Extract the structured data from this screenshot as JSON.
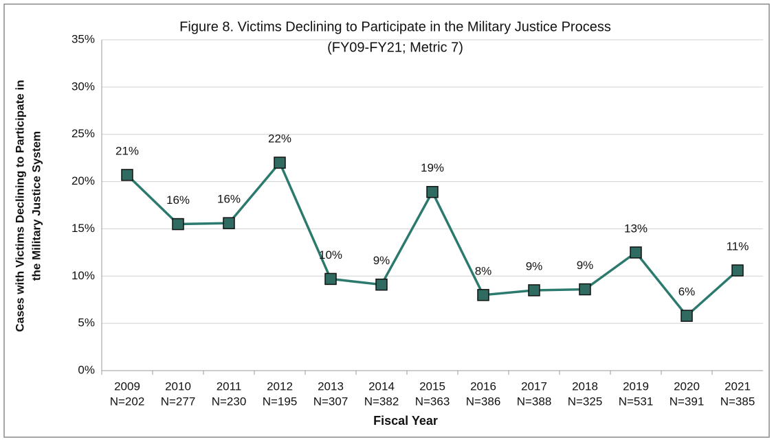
{
  "chart_data": {
    "type": "line",
    "title": "Figure 8. Victims Declining to Participate in the Military Justice Process",
    "subtitle": "(FY09-FY21; Metric 7)",
    "y_label": [
      "Cases with Victims Declining to Participate in",
      "the Military Justice System"
    ],
    "x_label": "Fiscal Year",
    "categories": [
      "2009",
      "2010",
      "2011",
      "2012",
      "2013",
      "2014",
      "2015",
      "2016",
      "2017",
      "2018",
      "2019",
      "2020",
      "2021"
    ],
    "category_counts": [
      "N=202",
      "N=277",
      "N=230",
      "N=195",
      "N=307",
      "N=382",
      "N=363",
      "N=386",
      "N=388",
      "N=325",
      "N=531",
      "N=391",
      "N=385"
    ],
    "series": [
      {
        "name": "Victims Declining to Participate",
        "color": "#2b7a6d",
        "values": [
          20.7,
          15.5,
          15.6,
          22.0,
          9.7,
          9.1,
          18.9,
          8.0,
          8.5,
          8.6,
          12.5,
          5.8,
          10.6
        ],
        "value_labels": [
          "21%",
          "16%",
          "16%",
          "22%",
          "10%",
          "9%",
          "19%",
          "8%",
          "9%",
          "9%",
          "13%",
          "6%",
          "11%"
        ]
      }
    ],
    "ylim": [
      0,
      35
    ],
    "yticks": [
      {
        "value": 0,
        "label": "0%"
      },
      {
        "value": 5,
        "label": "5%"
      },
      {
        "value": 10,
        "label": "10%"
      },
      {
        "value": 15,
        "label": "15%"
      },
      {
        "value": 20,
        "label": "20%"
      },
      {
        "value": 25,
        "label": "25%"
      },
      {
        "value": 30,
        "label": "30%"
      },
      {
        "value": 35,
        "label": "35%"
      }
    ],
    "grid": true
  }
}
